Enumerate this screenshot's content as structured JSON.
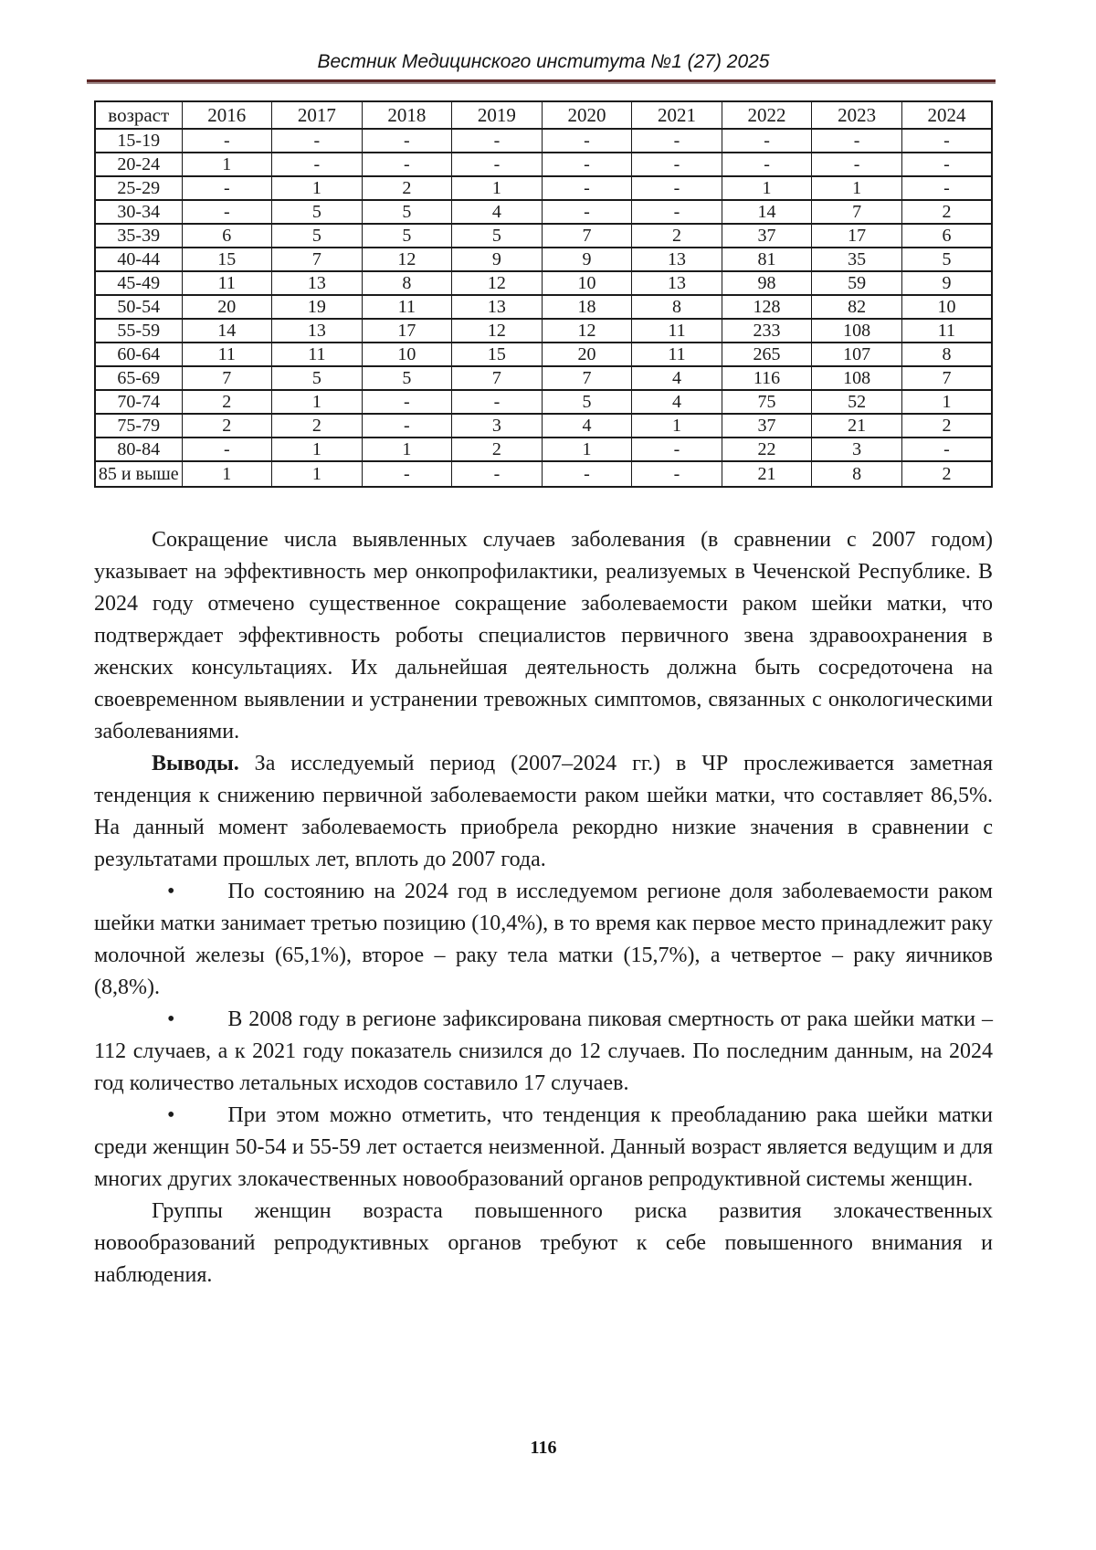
{
  "header": {
    "journal_title": "Вестник Медицинского института №1 (27) 2025",
    "rule_color": "#5b2524"
  },
  "footer": {
    "page_number": "116"
  },
  "bullet_char": "•",
  "table": {
    "columns": [
      "возраст",
      "2016",
      "2017",
      "2018",
      "2019",
      "2020",
      "2021",
      "2022",
      "2023",
      "2024"
    ],
    "rows": [
      {
        "age": "15-19",
        "values": [
          "-",
          "-",
          "-",
          "-",
          "-",
          "-",
          "-",
          "-",
          "-"
        ]
      },
      {
        "age": "20-24",
        "values": [
          "1",
          "-",
          "-",
          "-",
          "-",
          "-",
          "-",
          "-",
          "-"
        ]
      },
      {
        "age": "25-29",
        "values": [
          "-",
          "1",
          "2",
          "1",
          "-",
          "-",
          "1",
          "1",
          "-"
        ]
      },
      {
        "age": "30-34",
        "values": [
          "-",
          "5",
          "5",
          "4",
          "-",
          "-",
          "14",
          "7",
          "2"
        ]
      },
      {
        "age": "35-39",
        "values": [
          "6",
          "5",
          "5",
          "5",
          "7",
          "2",
          "37",
          "17",
          "6"
        ]
      },
      {
        "age": "40-44",
        "values": [
          "15",
          "7",
          "12",
          "9",
          "9",
          "13",
          "81",
          "35",
          "5"
        ]
      },
      {
        "age": "45-49",
        "values": [
          "11",
          "13",
          "8",
          "12",
          "10",
          "13",
          "98",
          "59",
          "9"
        ]
      },
      {
        "age": "50-54",
        "values": [
          "20",
          "19",
          "11",
          "13",
          "18",
          "8",
          "128",
          "82",
          "10"
        ]
      },
      {
        "age": "55-59",
        "values": [
          "14",
          "13",
          "17",
          "12",
          "12",
          "11",
          "233",
          "108",
          "11"
        ]
      },
      {
        "age": "60-64",
        "values": [
          "11",
          "11",
          "10",
          "15",
          "20",
          "11",
          "265",
          "107",
          "8"
        ]
      },
      {
        "age": "65-69",
        "values": [
          "7",
          "5",
          "5",
          "7",
          "7",
          "4",
          "116",
          "108",
          "7"
        ]
      },
      {
        "age": "70-74",
        "values": [
          "2",
          "1",
          "-",
          "-",
          "5",
          "4",
          "75",
          "52",
          "1"
        ]
      },
      {
        "age": "75-79",
        "values": [
          "2",
          "2",
          "-",
          "3",
          "4",
          "1",
          "37",
          "21",
          "2"
        ]
      },
      {
        "age": "80-84",
        "values": [
          "-",
          "1",
          "1",
          "2",
          "1",
          "-",
          "22",
          "3",
          "-"
        ]
      },
      {
        "age": "85 и выше",
        "values": [
          "1",
          "1",
          "-",
          "-",
          "-",
          "-",
          "21",
          "8",
          "2"
        ]
      }
    ]
  },
  "paragraphs": [
    {
      "style": "indent",
      "lead": "",
      "text": "Сокращение числа выявленных случаев заболевания (в сравнении с 2007 годом) указывает на эффективность мер онкопрофилактики, реализуемых в Чеченской Республике. В 2024 году отмечено существенное сокращение заболеваемости раком шейки матки, что подтверждает эффективность роботы специалистов первичного звена здравоохранения в женских консультациях. Их дальнейшая деятельность должна быть сосредоточена на своевременном выявлении и устранении тревожных симптомов, связанных с онкологическими заболеваниями."
    },
    {
      "style": "indent",
      "lead": "Выводы.",
      "text": " За исследуемый период (2007–2024 гг.) в ЧР прослеживается заметная тенденция к снижению первичной заболеваемости раком шейки матки, что составляет 86,5%. На данный момент заболеваемость приобрела рекордно низкие значения в сравнении с результатами прошлых лет, вплоть до 2007 года."
    },
    {
      "style": "bullet",
      "lead": "",
      "text": "По состоянию на 2024 год в исследуемом регионе доля заболеваемости раком шейки матки занимает третью позицию (10,4%), в то время как первое место принадлежит раку молочной железы (65,1%), второе – раку тела матки (15,7%), а четвертое – раку яичников (8,8%)."
    },
    {
      "style": "bullet",
      "lead": "",
      "text": "В 2008 году в регионе зафиксирована пиковая смертность от рака шейки матки – 112 случаев, а к 2021 году показатель снизился до 12 случаев. По последним данным, на 2024 год количество летальных исходов составило 17 случаев."
    },
    {
      "style": "bullet",
      "lead": "",
      "text": "При этом можно отметить, что тенденция к преобладанию рака шейки матки среди женщин 50-54 и 55-59 лет остается неизменной. Данный возраст является ведущим и для многих других злокачественных новообразований органов репродуктивной системы женщин."
    },
    {
      "style": "indent",
      "lead": "",
      "text": "Группы женщин возраста повышенного риска развития злокачественных новообразований репродуктивных органов требуют к себе повышенного внимания и наблюдения."
    }
  ]
}
